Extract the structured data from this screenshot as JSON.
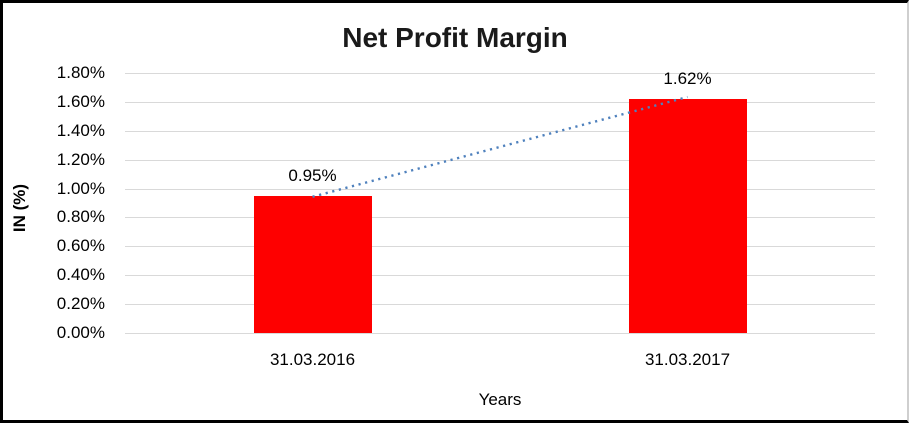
{
  "window": {
    "background": "#ffffff",
    "frame_color": "#000000",
    "frame_right_color": "#cfcfcf"
  },
  "chart_data": {
    "type": "bar",
    "title": "Net Profit Margin",
    "xlabel": "Years",
    "ylabel": "IN (%)",
    "categories": [
      "31.03.2016",
      "31.03.2017"
    ],
    "series": [
      {
        "name": "Net Profit Margin",
        "values": [
          0.95,
          1.62
        ]
      }
    ],
    "data_labels": [
      "0.95%",
      "1.62%"
    ],
    "ylim": [
      0,
      1.8
    ],
    "yticks": [
      {
        "label": "1.80%",
        "value": 1.8
      },
      {
        "label": "1.60%",
        "value": 1.6
      },
      {
        "label": "1.40%",
        "value": 1.4
      },
      {
        "label": "1.20%",
        "value": 1.2
      },
      {
        "label": "1.00%",
        "value": 1.0
      },
      {
        "label": "0.80%",
        "value": 0.8
      },
      {
        "label": "0.60%",
        "value": 0.6
      },
      {
        "label": "0.40%",
        "value": 0.4
      },
      {
        "label": "0.20%",
        "value": 0.2
      },
      {
        "label": "0.00%",
        "value": 0.0
      }
    ],
    "grid": true,
    "gridline_color": "#d9d9d9",
    "bar_color": "#fe0000",
    "legend": "none",
    "trendline": {
      "type": "linear",
      "style": "dotted",
      "color": "#4f81bd",
      "from_value": 0.95,
      "to_value": 1.62
    }
  }
}
